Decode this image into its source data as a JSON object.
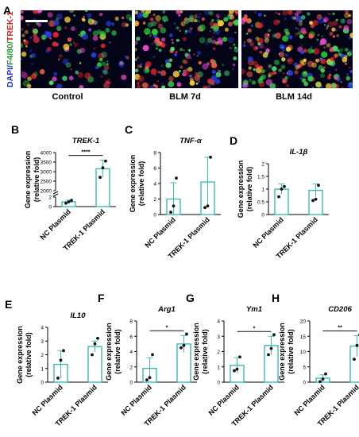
{
  "panel_a": {
    "letter": "A",
    "stain_label_parts": [
      {
        "text": "DAPI/",
        "color": "#1a2fd6"
      },
      {
        "text": "F4/80/",
        "color": "#1f9a2a"
      },
      {
        "text": "TREK-1",
        "color": "#e01b1b"
      }
    ],
    "images": [
      {
        "label": "Control",
        "density": 0.55
      },
      {
        "label": "BLM 7d",
        "density": 0.85
      },
      {
        "label": "BLM 14d",
        "density": 1.0
      }
    ]
  },
  "colors": {
    "bar": "#3bbcb3",
    "point": "#111111",
    "significance": "#111111"
  },
  "chart_data": [
    {
      "panel": "B",
      "type": "bar",
      "title": "TREK-1",
      "ylabel": "Gene expression\n(relative fold)",
      "categories": [
        "NC Plasmid",
        "TREK-1 Plasmid"
      ],
      "values": [
        1.0,
        3150
      ],
      "errors": [
        0.35,
        450
      ],
      "points": [
        [
          0.7,
          1.0,
          1.3
        ],
        [
          2700,
          3200,
          3550
        ]
      ],
      "yaxis": {
        "broken": true,
        "lower_ticks": [
          0,
          2
        ],
        "upper_ticks": [
          2000,
          2500,
          3000,
          3500,
          4000
        ],
        "lower_max": 2,
        "upper_min": 2000,
        "upper_max": 4000
      },
      "significance": "****"
    },
    {
      "panel": "C",
      "type": "bar",
      "title": "TNF-α",
      "ylabel": "Gene expression\n(relative fold)",
      "categories": [
        "NC Plasmid",
        "TREK-1 Plasmid"
      ],
      "values": [
        2.0,
        4.2
      ],
      "errors": [
        2.1,
        3.2
      ],
      "points": [
        [
          0.3,
          1.1,
          4.7
        ],
        [
          0.9,
          1.1,
          7.4
        ]
      ],
      "ylim": [
        0,
        8
      ],
      "yticks": [
        0,
        2,
        4,
        6,
        8
      ],
      "significance": ""
    },
    {
      "panel": "D",
      "type": "bar",
      "title": "IL-1β",
      "ylabel": "Gene expression\n(relative fold)",
      "categories": [
        "NC Plasmid",
        "TREK-1 Plasmid"
      ],
      "values": [
        1.0,
        0.95
      ],
      "errors": [
        0.2,
        0.25
      ],
      "points": [
        [
          0.7,
          1.0,
          1.1
        ],
        [
          0.55,
          0.6,
          1.15
        ]
      ],
      "ylim": [
        0,
        2
      ],
      "yticks": [
        0,
        0.5,
        1,
        1.5,
        2
      ],
      "significance": ""
    },
    {
      "panel": "E",
      "type": "bar",
      "title": "IL10",
      "ylabel": "Gene expression\n(relative fold)",
      "categories": [
        "NC Plasmid",
        "TREK-1 Plasmid"
      ],
      "values": [
        1.3,
        2.6
      ],
      "errors": [
        1.0,
        0.4
      ],
      "points": [
        [
          0.3,
          1.6,
          2.3
        ],
        [
          2.0,
          2.8,
          3.2
        ]
      ],
      "ylim": [
        0,
        4
      ],
      "yticks": [
        0,
        1,
        2,
        3,
        4
      ],
      "significance": ""
    },
    {
      "panel": "F",
      "type": "bar",
      "title": "Arg1",
      "ylabel": "Gene expression\n(relative fold)",
      "categories": [
        "NC Plasmid",
        "TREK-1 Plasmid"
      ],
      "values": [
        1.8,
        5.0
      ],
      "errors": [
        1.4,
        1.1
      ],
      "points": [
        [
          0.3,
          0.6,
          3.6
        ],
        [
          4.5,
          4.8,
          6.3
        ]
      ],
      "ylim": [
        0,
        8
      ],
      "yticks": [
        0,
        2,
        4,
        6,
        8
      ],
      "significance": "*"
    },
    {
      "panel": "G",
      "type": "bar",
      "title": "Ym1",
      "ylabel": "Gene expression\n(relative fold)",
      "categories": [
        "NC Plasmid",
        "TREK-1 Plasmid"
      ],
      "values": [
        1.1,
        2.4
      ],
      "errors": [
        0.5,
        0.6
      ],
      "points": [
        [
          0.75,
          0.85,
          1.65
        ],
        [
          1.8,
          2.2,
          3.1
        ]
      ],
      "ylim": [
        0,
        4
      ],
      "yticks": [
        0,
        1,
        2,
        3,
        4
      ],
      "significance": "*"
    },
    {
      "panel": "H",
      "type": "bar",
      "title": "CD206",
      "ylabel": "Gene expression\n(relative fold)",
      "categories": [
        "NC Plasmid",
        "TREK-1 Plasmid"
      ],
      "values": [
        1.3,
        11.8
      ],
      "errors": [
        1.1,
        3.4
      ],
      "points": [
        [
          0.2,
          1.0,
          2.7
        ],
        [
          7.5,
          12.0,
          15.5
        ]
      ],
      "ylim": [
        0,
        20
      ],
      "yticks": [
        0,
        5,
        10,
        15,
        20
      ],
      "significance": "**"
    }
  ]
}
